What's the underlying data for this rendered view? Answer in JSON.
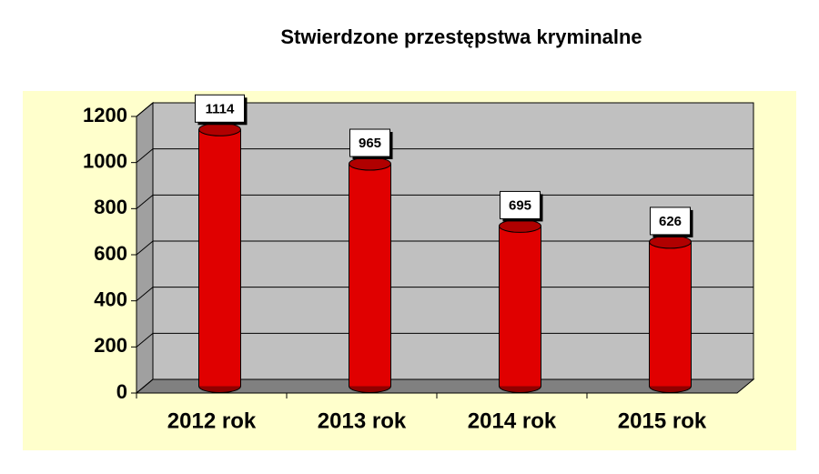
{
  "chart_data": {
    "type": "bar",
    "title": "Stwierdzone przestępstwa kryminalne",
    "categories": [
      "2012 rok",
      "2013 rok",
      "2014 rok",
      "2015 rok"
    ],
    "values": [
      1114,
      965,
      695,
      626
    ],
    "color": "#e00000",
    "ylim": [
      0,
      1200
    ],
    "yticks": [
      0,
      200,
      400,
      600,
      800,
      1000,
      1200
    ],
    "grid": true
  }
}
